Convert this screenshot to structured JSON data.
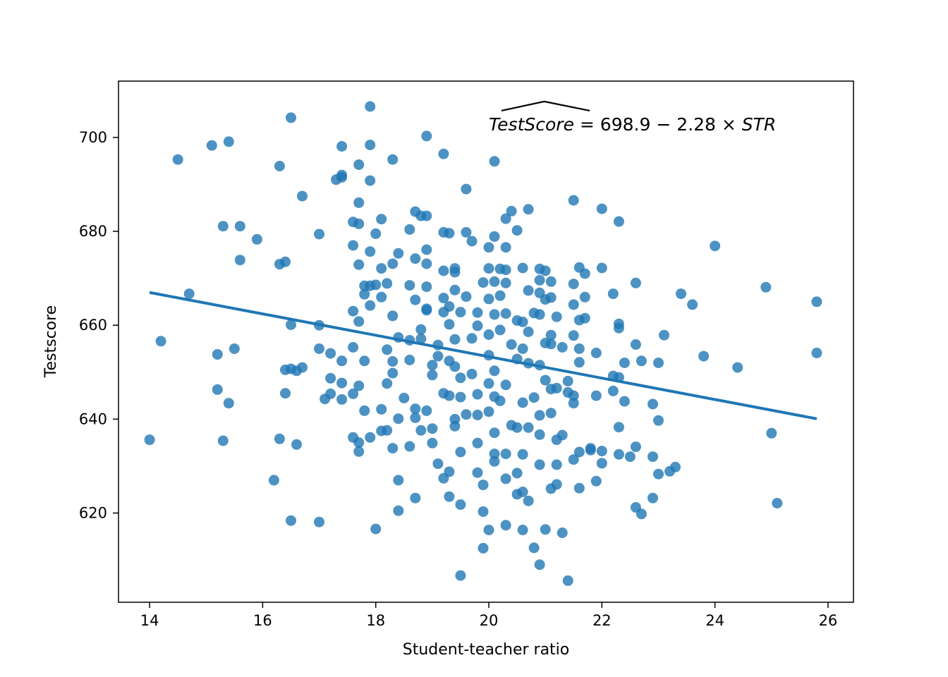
{
  "chart_data": {
    "type": "scatter",
    "xlabel": "Student-teacher ratio",
    "ylabel": "Testscore",
    "xlim": [
      13.45,
      26.45
    ],
    "ylim": [
      601,
      712
    ],
    "xticks": [
      "14",
      "16",
      "18",
      "20",
      "22",
      "24",
      "26"
    ],
    "yticks": [
      "620",
      "640",
      "660",
      "680",
      "700"
    ],
    "grid": false,
    "colors": {
      "points": "#1f77b4",
      "line": "#1f77b4"
    },
    "annotation": {
      "lhs": "TestScore",
      "rhs": " = 698.9 − 2.28 × ",
      "var": "STR",
      "anchor": [
        20.0,
        701.5
      ]
    },
    "regression_line": {
      "intercept": 698.9,
      "slope": -2.28,
      "x_range": [
        14.0,
        25.8
      ]
    },
    "points": [
      [
        14.0,
        635.6
      ],
      [
        14.2,
        656.6
      ],
      [
        14.5,
        695.3
      ],
      [
        14.7,
        666.7
      ],
      [
        15.1,
        698.3
      ],
      [
        15.4,
        699.1
      ],
      [
        15.2,
        653.8
      ],
      [
        15.5,
        655.0
      ],
      [
        15.2,
        646.3
      ],
      [
        15.4,
        643.4
      ],
      [
        15.3,
        681.1
      ],
      [
        15.6,
        681.1
      ],
      [
        15.6,
        673.9
      ],
      [
        15.9,
        678.3
      ],
      [
        15.3,
        635.4
      ],
      [
        16.3,
        693.9
      ],
      [
        16.5,
        704.2
      ],
      [
        16.3,
        673.0
      ],
      [
        16.4,
        673.5
      ],
      [
        16.7,
        687.5
      ],
      [
        16.5,
        660.1
      ],
      [
        16.4,
        650.5
      ],
      [
        16.5,
        650.7
      ],
      [
        16.6,
        650.3
      ],
      [
        16.7,
        651.0
      ],
      [
        16.4,
        645.5
      ],
      [
        16.3,
        635.8
      ],
      [
        16.6,
        634.6
      ],
      [
        16.2,
        627.0
      ],
      [
        16.5,
        618.4
      ],
      [
        17.0,
        679.4
      ],
      [
        17.0,
        660.0
      ],
      [
        17.0,
        655.0
      ],
      [
        17.1,
        644.3
      ],
      [
        17.0,
        618.1
      ],
      [
        17.3,
        691.0
      ],
      [
        17.4,
        692.0
      ],
      [
        17.4,
        698.1
      ],
      [
        17.4,
        691.5
      ],
      [
        17.2,
        654.0
      ],
      [
        17.4,
        652.4
      ],
      [
        17.2,
        648.7
      ],
      [
        17.4,
        647.7
      ],
      [
        17.2,
        645.4
      ],
      [
        17.4,
        644.2
      ],
      [
        17.6,
        682.0
      ],
      [
        17.7,
        686.1
      ],
      [
        17.7,
        694.2
      ],
      [
        17.7,
        681.6
      ],
      [
        17.6,
        677.0
      ],
      [
        17.7,
        672.9
      ],
      [
        17.8,
        668.4
      ],
      [
        17.8,
        666.6
      ],
      [
        17.6,
        663.0
      ],
      [
        17.7,
        660.8
      ],
      [
        17.6,
        655.3
      ],
      [
        17.8,
        652.4
      ],
      [
        17.7,
        647.1
      ],
      [
        17.6,
        645.4
      ],
      [
        17.9,
        706.6
      ],
      [
        17.9,
        698.4
      ],
      [
        17.9,
        690.8
      ],
      [
        17.9,
        675.7
      ],
      [
        17.9,
        668.4
      ],
      [
        17.9,
        664.2
      ],
      [
        17.8,
        641.8
      ],
      [
        17.9,
        636.1
      ],
      [
        17.7,
        635.0
      ],
      [
        17.7,
        633.1
      ],
      [
        17.6,
        636.1
      ],
      [
        18.0,
        679.5
      ],
      [
        18.1,
        682.6
      ],
      [
        18.0,
        668.6
      ],
      [
        18.1,
        666.0
      ],
      [
        18.1,
        672.1
      ],
      [
        18.2,
        668.9
      ],
      [
        18.2,
        654.8
      ],
      [
        18.2,
        647.6
      ],
      [
        18.1,
        642.1
      ],
      [
        18.1,
        637.5
      ],
      [
        18.2,
        637.6
      ],
      [
        18.0,
        616.6
      ],
      [
        18.3,
        695.3
      ],
      [
        18.4,
        675.3
      ],
      [
        18.3,
        673.1
      ],
      [
        18.3,
        662.0
      ],
      [
        18.4,
        657.4
      ],
      [
        18.3,
        652.3
      ],
      [
        18.3,
        649.8
      ],
      [
        18.4,
        640.1
      ],
      [
        18.3,
        633.8
      ],
      [
        18.4,
        627.0
      ],
      [
        18.4,
        620.5
      ],
      [
        18.6,
        680.4
      ],
      [
        18.7,
        684.2
      ],
      [
        18.8,
        683.3
      ],
      [
        18.6,
        668.5
      ],
      [
        18.7,
        674.2
      ],
      [
        18.7,
        665.4
      ],
      [
        18.6,
        656.8
      ],
      [
        18.8,
        657.1
      ],
      [
        18.6,
        652.6
      ],
      [
        18.7,
        642.2
      ],
      [
        18.7,
        640.3
      ],
      [
        18.8,
        637.6
      ],
      [
        18.6,
        634.2
      ],
      [
        18.7,
        623.2
      ],
      [
        18.5,
        644.5
      ],
      [
        18.9,
        683.3
      ],
      [
        18.9,
        676.1
      ],
      [
        18.9,
        673.1
      ],
      [
        18.9,
        668.2
      ],
      [
        18.9,
        663.2
      ],
      [
        18.9,
        663.5
      ],
      [
        18.8,
        659.1
      ],
      [
        19.0,
        651.5
      ],
      [
        19.0,
        649.4
      ],
      [
        18.9,
        641.8
      ],
      [
        19.0,
        638.0
      ],
      [
        19.0,
        634.9
      ],
      [
        19.1,
        630.5
      ],
      [
        18.9,
        700.3
      ],
      [
        19.2,
        696.5
      ],
      [
        19.2,
        679.8
      ],
      [
        19.3,
        679.6
      ],
      [
        19.2,
        671.6
      ],
      [
        19.4,
        672.1
      ],
      [
        19.2,
        665.8
      ],
      [
        19.3,
        664.0
      ],
      [
        19.2,
        662.8
      ],
      [
        19.3,
        660.2
      ],
      [
        19.1,
        655.8
      ],
      [
        19.1,
        653.4
      ],
      [
        19.3,
        652.4
      ],
      [
        19.2,
        645.5
      ],
      [
        19.3,
        645.0
      ],
      [
        19.4,
        640.0
      ],
      [
        19.4,
        638.5
      ],
      [
        19.2,
        627.4
      ],
      [
        19.3,
        623.5
      ],
      [
        19.3,
        628.8
      ],
      [
        19.4,
        671.3
      ],
      [
        19.4,
        667.5
      ],
      [
        19.5,
        662.8
      ],
      [
        19.4,
        657.0
      ],
      [
        19.4,
        651.2
      ],
      [
        19.5,
        648.8
      ],
      [
        19.5,
        644.7
      ],
      [
        19.6,
        641.0
      ],
      [
        19.5,
        633.0
      ],
      [
        19.5,
        621.8
      ],
      [
        19.5,
        606.7
      ],
      [
        19.6,
        689.0
      ],
      [
        19.6,
        679.8
      ],
      [
        19.7,
        677.9
      ],
      [
        19.6,
        666.1
      ],
      [
        19.8,
        662.7
      ],
      [
        19.8,
        659.9
      ],
      [
        19.7,
        657.2
      ],
      [
        19.7,
        649.6
      ],
      [
        19.8,
        645.3
      ],
      [
        19.8,
        640.9
      ],
      [
        19.8,
        634.9
      ],
      [
        19.8,
        628.6
      ],
      [
        19.9,
        626.0
      ],
      [
        19.9,
        620.3
      ],
      [
        19.9,
        612.5
      ],
      [
        19.9,
        669.1
      ],
      [
        20.0,
        672.1
      ],
      [
        20.1,
        678.9
      ],
      [
        20.0,
        676.6
      ],
      [
        20.1,
        669.3
      ],
      [
        20.0,
        665.6
      ],
      [
        20.1,
        662.3
      ],
      [
        20.0,
        658.0
      ],
      [
        20.0,
        653.6
      ],
      [
        20.1,
        650.3
      ],
      [
        20.0,
        647.6
      ],
      [
        20.1,
        644.8
      ],
      [
        20.0,
        641.6
      ],
      [
        20.1,
        637.1
      ],
      [
        20.1,
        632.6
      ],
      [
        20.1,
        631.0
      ],
      [
        20.0,
        616.4
      ],
      [
        20.1,
        694.9
      ],
      [
        20.2,
        672.0
      ],
      [
        20.3,
        682.7
      ],
      [
        20.3,
        676.6
      ],
      [
        20.3,
        671.8
      ],
      [
        20.4,
        684.3
      ],
      [
        20.3,
        669.0
      ],
      [
        20.2,
        666.3
      ],
      [
        20.3,
        662.5
      ],
      [
        20.2,
        659.0
      ],
      [
        20.4,
        655.9
      ],
      [
        20.3,
        647.3
      ],
      [
        20.2,
        643.9
      ],
      [
        20.4,
        638.7
      ],
      [
        20.3,
        632.6
      ],
      [
        20.3,
        627.3
      ],
      [
        20.3,
        617.4
      ],
      [
        20.5,
        680.2
      ],
      [
        20.6,
        672.2
      ],
      [
        20.5,
        661.0
      ],
      [
        20.6,
        660.7
      ],
      [
        20.6,
        655.0
      ],
      [
        20.5,
        652.8
      ],
      [
        20.6,
        643.5
      ],
      [
        20.5,
        638.2
      ],
      [
        20.6,
        632.5
      ],
      [
        20.5,
        628.5
      ],
      [
        20.5,
        624.0
      ],
      [
        20.6,
        624.5
      ],
      [
        20.6,
        616.4
      ],
      [
        20.7,
        684.7
      ],
      [
        20.7,
        667.4
      ],
      [
        20.8,
        662.6
      ],
      [
        20.7,
        658.6
      ],
      [
        20.7,
        651.9
      ],
      [
        20.8,
        644.6
      ],
      [
        20.7,
        638.2
      ],
      [
        20.7,
        622.6
      ],
      [
        20.8,
        612.6
      ],
      [
        20.9,
        672.0
      ],
      [
        20.9,
        669.6
      ],
      [
        20.9,
        666.9
      ],
      [
        21.0,
        665.5
      ],
      [
        20.9,
        662.3
      ],
      [
        21.0,
        656.2
      ],
      [
        20.9,
        651.5
      ],
      [
        21.0,
        648.3
      ],
      [
        20.9,
        640.8
      ],
      [
        20.9,
        636.7
      ],
      [
        20.9,
        630.3
      ],
      [
        20.9,
        609.0
      ],
      [
        21.0,
        671.6
      ],
      [
        21.1,
        669.3
      ],
      [
        21.1,
        665.9
      ],
      [
        21.1,
        657.9
      ],
      [
        21.1,
        656.0
      ],
      [
        21.1,
        646.4
      ],
      [
        21.2,
        646.6
      ],
      [
        21.1,
        641.3
      ],
      [
        21.2,
        635.6
      ],
      [
        21.2,
        630.3
      ],
      [
        21.1,
        625.2
      ],
      [
        21.2,
        626.1
      ],
      [
        21.0,
        616.5
      ],
      [
        21.3,
        615.8
      ],
      [
        21.3,
        636.6
      ],
      [
        21.2,
        661.8
      ],
      [
        21.3,
        655.3
      ],
      [
        21.4,
        648.1
      ],
      [
        21.4,
        645.7
      ],
      [
        21.5,
        686.6
      ],
      [
        21.5,
        668.8
      ],
      [
        21.5,
        664.4
      ],
      [
        21.6,
        672.3
      ],
      [
        21.6,
        661.1
      ],
      [
        21.5,
        657.8
      ],
      [
        21.6,
        655.0
      ],
      [
        21.6,
        652.1
      ],
      [
        21.5,
        645.0
      ],
      [
        21.5,
        643.4
      ],
      [
        21.5,
        631.4
      ],
      [
        21.6,
        633.0
      ],
      [
        21.6,
        625.3
      ],
      [
        21.4,
        605.6
      ],
      [
        21.7,
        671.0
      ],
      [
        21.7,
        666.0
      ],
      [
        21.7,
        661.5
      ],
      [
        21.8,
        633.8
      ],
      [
        21.8,
        633.4
      ],
      [
        21.9,
        654.1
      ],
      [
        21.9,
        645.0
      ],
      [
        21.9,
        626.8
      ],
      [
        22.0,
        684.8
      ],
      [
        22.0,
        672.2
      ],
      [
        22.0,
        633.2
      ],
      [
        22.0,
        630.6
      ],
      [
        22.2,
        666.7
      ],
      [
        22.2,
        649.2
      ],
      [
        22.2,
        646.0
      ],
      [
        22.3,
        682.1
      ],
      [
        22.3,
        659.4
      ],
      [
        22.3,
        660.3
      ],
      [
        22.3,
        648.9
      ],
      [
        22.3,
        638.3
      ],
      [
        22.3,
        632.5
      ],
      [
        22.4,
        643.8
      ],
      [
        22.4,
        652.0
      ],
      [
        22.5,
        632.0
      ],
      [
        22.6,
        669.0
      ],
      [
        22.6,
        655.9
      ],
      [
        22.7,
        652.4
      ],
      [
        22.6,
        634.1
      ],
      [
        22.6,
        621.2
      ],
      [
        22.7,
        619.8
      ],
      [
        22.9,
        643.2
      ],
      [
        22.9,
        623.2
      ],
      [
        22.9,
        632.0
      ],
      [
        23.0,
        639.7
      ],
      [
        23.0,
        628.3
      ],
      [
        23.0,
        652.0
      ],
      [
        23.1,
        657.9
      ],
      [
        23.2,
        628.9
      ],
      [
        23.3,
        629.8
      ],
      [
        23.4,
        666.7
      ],
      [
        23.6,
        664.4
      ],
      [
        23.8,
        653.4
      ],
      [
        24.0,
        676.9
      ],
      [
        24.4,
        651.0
      ],
      [
        24.9,
        668.1
      ],
      [
        25.0,
        637.0
      ],
      [
        25.1,
        622.1
      ],
      [
        25.8,
        665.0
      ],
      [
        25.8,
        654.1
      ]
    ]
  }
}
